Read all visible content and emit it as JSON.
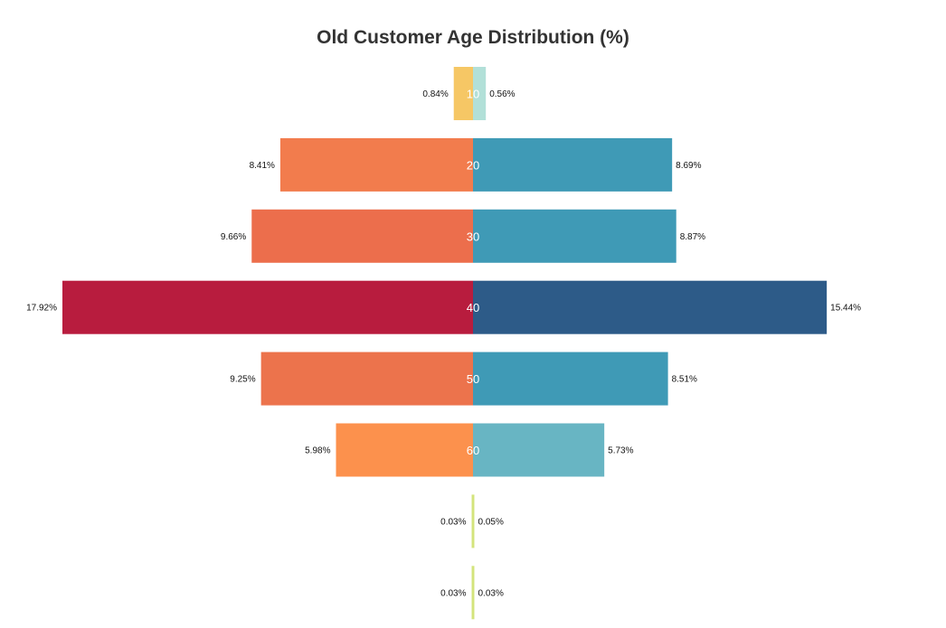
{
  "chart_data": {
    "type": "bar",
    "title": "Old Customer Age Distribution (%)",
    "categories": [
      "10",
      "20",
      "30",
      "40",
      "50",
      "60",
      "",
      ""
    ],
    "series": [
      {
        "values": [
          0.84,
          8.41,
          9.66,
          17.92,
          9.25,
          5.98,
          0.03,
          0.03
        ],
        "labels": [
          "0.84%",
          "8.41%",
          "9.66%",
          "17.92%",
          "9.25%",
          "5.98%",
          "0.03%",
          "0.03%"
        ],
        "colors": [
          "#f6c765",
          "#f27c4d",
          "#ec6e4c",
          "#b81c3e",
          "#ec734c",
          "#fc914d",
          "#d4e47c",
          "#d4e47c"
        ]
      },
      {
        "values": [
          0.56,
          8.69,
          8.87,
          15.44,
          8.51,
          5.73,
          0.05,
          0.03
        ],
        "labels": [
          "0.56%",
          "8.69%",
          "8.87%",
          "15.44%",
          "8.51%",
          "5.73%",
          "0.05%",
          "0.03%"
        ],
        "colors": [
          "#b2e0d8",
          "#3f9ab6",
          "#3f9ab6",
          "#2d5b88",
          "#3f9ab6",
          "#68b5c3",
          "#d4e47c",
          "#d4e47c"
        ]
      }
    ],
    "xlim": [
      -17.92,
      17.92
    ],
    "grid": false,
    "legend": "none"
  }
}
